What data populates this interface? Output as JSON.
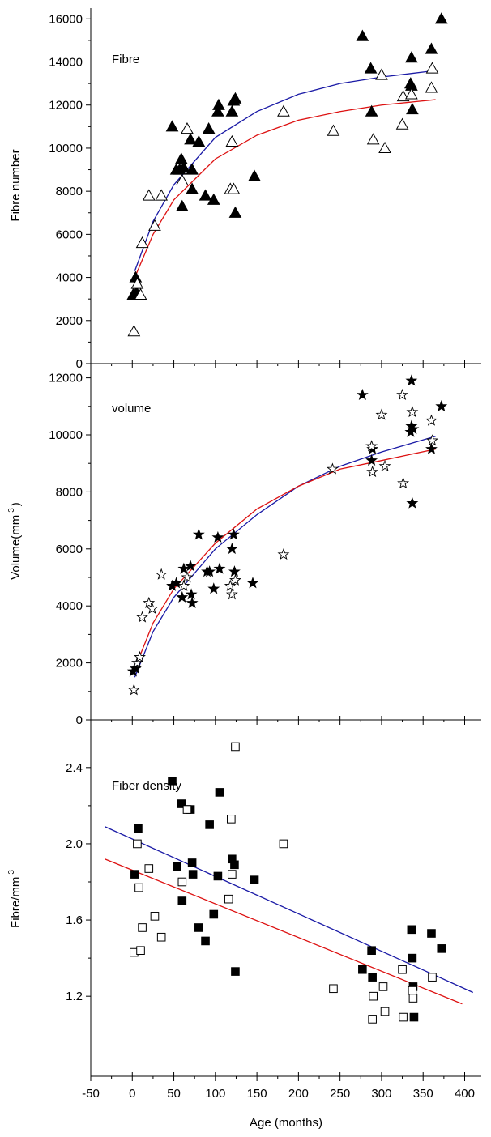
{
  "chart_data": [
    {
      "type": "scatter",
      "title": "",
      "panel_label": "Fibre",
      "ylabel": "Fibre number",
      "ylabel_superscript": "",
      "xlabel": "",
      "xlim": [
        -50,
        420
      ],
      "ylim": [
        0,
        16500
      ],
      "yticks": [
        0,
        2000,
        4000,
        6000,
        8000,
        10000,
        12000,
        14000,
        16000
      ],
      "ytick_labels": [
        "0",
        "2000",
        "4000",
        "6000",
        "8000",
        "10000",
        "12000",
        "14000",
        "16000"
      ],
      "show_x_tick_labels": false,
      "series": [
        {
          "marker": "triangle-filled",
          "points": [
            [
              1,
              3200
            ],
            [
              4,
              4000
            ],
            [
              5,
              3300
            ],
            [
              48,
              11000
            ],
            [
              53,
              9000
            ],
            [
              57,
              9000
            ],
            [
              59,
              9500
            ],
            [
              60,
              7300
            ],
            [
              62,
              9100
            ],
            [
              70,
              10400
            ],
            [
              72,
              9000
            ],
            [
              72,
              8100
            ],
            [
              80,
              10300
            ],
            [
              88,
              7800
            ],
            [
              92,
              10900
            ],
            [
              98,
              7600
            ],
            [
              103,
              11700
            ],
            [
              104,
              12000
            ],
            [
              120,
              11700
            ],
            [
              122,
              12200
            ],
            [
              124,
              12300
            ],
            [
              124,
              7000
            ],
            [
              147,
              8700
            ],
            [
              277,
              15200
            ],
            [
              287,
              13700
            ],
            [
              288,
              11700
            ],
            [
              335,
              13000
            ],
            [
              336,
              14200
            ],
            [
              336,
              12900
            ],
            [
              337,
              11800
            ],
            [
              360,
              14600
            ],
            [
              372,
              16000
            ]
          ]
        },
        {
          "marker": "triangle-open",
          "points": [
            [
              2,
              1500
            ],
            [
              6,
              3700
            ],
            [
              10,
              3200
            ],
            [
              12,
              5600
            ],
            [
              20,
              7800
            ],
            [
              27,
              6400
            ],
            [
              35,
              7800
            ],
            [
              60,
              8500
            ],
            [
              66,
              10900
            ],
            [
              118,
              8100
            ],
            [
              120,
              10300
            ],
            [
              122,
              8100
            ],
            [
              182,
              11700
            ],
            [
              242,
              10800
            ],
            [
              290,
              10400
            ],
            [
              300,
              13400
            ],
            [
              304,
              10000
            ],
            [
              325,
              11100
            ],
            [
              326,
              12400
            ],
            [
              336,
              12500
            ],
            [
              360,
              12800
            ],
            [
              361,
              13700
            ]
          ]
        }
      ],
      "fit_lines": [
        {
          "color": "#1a1aa6",
          "points": [
            [
              3,
              4300
            ],
            [
              25,
              6600
            ],
            [
              50,
              8300
            ],
            [
              100,
              10500
            ],
            [
              150,
              11700
            ],
            [
              200,
              12500
            ],
            [
              250,
              13000
            ],
            [
              300,
              13300
            ],
            [
              365,
              13600
            ]
          ]
        },
        {
          "color": "#dd1111",
          "points": [
            [
              3,
              4000
            ],
            [
              25,
              6000
            ],
            [
              50,
              7600
            ],
            [
              100,
              9500
            ],
            [
              150,
              10600
            ],
            [
              200,
              11300
            ],
            [
              250,
              11700
            ],
            [
              300,
              12000
            ],
            [
              365,
              12250
            ]
          ]
        }
      ]
    },
    {
      "type": "scatter",
      "title": "",
      "panel_label": "volume",
      "ylabel": "Volume(mm",
      "ylabel_superscript": "3",
      "ylabel_suffix": ")",
      "xlabel": "",
      "xlim": [
        -50,
        420
      ],
      "ylim": [
        0,
        12500
      ],
      "yticks": [
        0,
        2000,
        4000,
        6000,
        8000,
        10000,
        12000
      ],
      "ytick_labels": [
        "0",
        "2000",
        "4000",
        "6000",
        "8000",
        "10000",
        "12000"
      ],
      "show_x_tick_labels": false,
      "series": [
        {
          "marker": "star-filled",
          "points": [
            [
              1,
              1700
            ],
            [
              4,
              1800
            ],
            [
              48,
              4700
            ],
            [
              53,
              4800
            ],
            [
              60,
              4300
            ],
            [
              62,
              5300
            ],
            [
              70,
              5400
            ],
            [
              71,
              4400
            ],
            [
              72,
              4100
            ],
            [
              80,
              6500
            ],
            [
              90,
              5200
            ],
            [
              93,
              5200
            ],
            [
              98,
              4600
            ],
            [
              103,
              6400
            ],
            [
              105,
              5300
            ],
            [
              120,
              6000
            ],
            [
              122,
              6500
            ],
            [
              123,
              5200
            ],
            [
              145,
              4800
            ],
            [
              277,
              11400
            ],
            [
              288,
              9100
            ],
            [
              289,
              9500
            ],
            [
              335,
              10100
            ],
            [
              336,
              10300
            ],
            [
              336,
              11900
            ],
            [
              337,
              7600
            ],
            [
              338,
              10200
            ],
            [
              360,
              9500
            ],
            [
              372,
              11000
            ]
          ]
        },
        {
          "marker": "star-open",
          "points": [
            [
              2,
              1050
            ],
            [
              6,
              2000
            ],
            [
              9,
              2200
            ],
            [
              12,
              3600
            ],
            [
              20,
              4100
            ],
            [
              24,
              3900
            ],
            [
              35,
              5100
            ],
            [
              62,
              4700
            ],
            [
              66,
              5000
            ],
            [
              118,
              4700
            ],
            [
              120,
              4400
            ],
            [
              124,
              4900
            ],
            [
              182,
              5800
            ],
            [
              241,
              8800
            ],
            [
              288,
              9600
            ],
            [
              289,
              8700
            ],
            [
              300,
              10700
            ],
            [
              304,
              8900
            ],
            [
              325,
              11400
            ],
            [
              326,
              8300
            ],
            [
              337,
              10800
            ],
            [
              360,
              10500
            ],
            [
              361,
              9800
            ]
          ]
        }
      ],
      "fit_lines": [
        {
          "color": "#1a1aa6",
          "points": [
            [
              3,
              1500
            ],
            [
              25,
              3100
            ],
            [
              50,
              4300
            ],
            [
              100,
              6000
            ],
            [
              150,
              7200
            ],
            [
              200,
              8200
            ],
            [
              250,
              8900
            ],
            [
              300,
              9400
            ],
            [
              365,
              9950
            ]
          ]
        },
        {
          "color": "#dd1111",
          "points": [
            [
              3,
              1800
            ],
            [
              25,
              3400
            ],
            [
              50,
              4600
            ],
            [
              100,
              6200
            ],
            [
              150,
              7400
            ],
            [
              200,
              8200
            ],
            [
              250,
              8800
            ],
            [
              300,
              9100
            ],
            [
              365,
              9500
            ]
          ]
        }
      ]
    },
    {
      "type": "scatter",
      "title": "",
      "panel_label": "Fiber density",
      "ylabel": "Fibre/mm",
      "ylabel_superscript": "3",
      "ylabel_suffix": "",
      "xlabel": "Age (months)",
      "xlim": [
        -50,
        420
      ],
      "ylim": [
        0.78,
        2.65
      ],
      "yticks": [
        1.2,
        1.6,
        2.0,
        2.4
      ],
      "ytick_labels": [
        "1.2",
        "1.6",
        "2.0",
        "2.4"
      ],
      "xticks": [
        -50,
        0,
        50,
        100,
        150,
        200,
        250,
        300,
        350,
        400
      ],
      "xtick_labels": [
        "-50",
        "0",
        "50",
        "100",
        "150",
        "200",
        "250",
        "300",
        "350",
        "400"
      ],
      "show_x_tick_labels": true,
      "series": [
        {
          "marker": "square-filled",
          "points": [
            [
              3,
              1.84
            ],
            [
              7,
              2.08
            ],
            [
              48,
              2.33
            ],
            [
              54,
              1.88
            ],
            [
              59,
              2.21
            ],
            [
              60,
              1.7
            ],
            [
              70,
              2.18
            ],
            [
              72,
              1.9
            ],
            [
              73,
              1.84
            ],
            [
              80,
              1.56
            ],
            [
              88,
              1.49
            ],
            [
              93,
              2.1
            ],
            [
              98,
              1.63
            ],
            [
              103,
              1.83
            ],
            [
              105,
              2.27
            ],
            [
              120,
              1.92
            ],
            [
              123,
              1.89
            ],
            [
              124,
              1.33
            ],
            [
              147,
              1.81
            ],
            [
              277,
              1.34
            ],
            [
              288,
              1.44
            ],
            [
              289,
              1.3
            ],
            [
              336,
              1.55
            ],
            [
              337,
              1.4
            ],
            [
              338,
              1.25
            ],
            [
              339,
              1.09
            ],
            [
              360,
              1.53
            ],
            [
              372,
              1.45
            ]
          ]
        },
        {
          "marker": "square-open",
          "points": [
            [
              2,
              1.43
            ],
            [
              6,
              2.0
            ],
            [
              8,
              1.77
            ],
            [
              10,
              1.44
            ],
            [
              12,
              1.56
            ],
            [
              20,
              1.87
            ],
            [
              27,
              1.62
            ],
            [
              35,
              1.51
            ],
            [
              60,
              1.8
            ],
            [
              66,
              2.18
            ],
            [
              116,
              1.71
            ],
            [
              119,
              2.13
            ],
            [
              120,
              1.84
            ],
            [
              124,
              2.51
            ],
            [
              182,
              2.0
            ],
            [
              242,
              1.24
            ],
            [
              289,
              1.08
            ],
            [
              290,
              1.2
            ],
            [
              302,
              1.25
            ],
            [
              304,
              1.12
            ],
            [
              325,
              1.34
            ],
            [
              326,
              1.09
            ],
            [
              337,
              1.23
            ],
            [
              338,
              1.19
            ],
            [
              361,
              1.3
            ]
          ]
        }
      ],
      "fit_lines": [
        {
          "color": "#1a1aa6",
          "points": [
            [
              -33,
              2.09
            ],
            [
              410,
              1.22
            ]
          ]
        },
        {
          "color": "#dd1111",
          "points": [
            [
              -33,
              1.92
            ],
            [
              397,
              1.16
            ]
          ]
        }
      ]
    }
  ]
}
